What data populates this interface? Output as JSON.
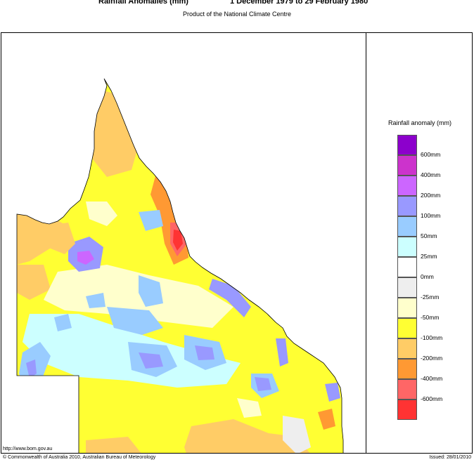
{
  "header": {
    "title": "Rainfall Anomalies (mm)",
    "period": "1 December 1979 to 29 February 1980",
    "subtitle": "Product of the National Climate Centre"
  },
  "legend": {
    "title": "Rainfall anomaly (mm)",
    "items": [
      {
        "color": "#8c00cc",
        "label": "600mm"
      },
      {
        "color": "#cc33cc",
        "label": "400mm"
      },
      {
        "color": "#cc66ff",
        "label": "200mm"
      },
      {
        "color": "#9999ff",
        "label": "100mm"
      },
      {
        "color": "#99ccff",
        "label": "50mm"
      },
      {
        "color": "#ccffff",
        "label": "25mm"
      },
      {
        "color": "#ffffff",
        "label": "0mm"
      },
      {
        "color": "#eeeeee",
        "label": "-25mm"
      },
      {
        "color": "#ffffcc",
        "label": "-50mm"
      },
      {
        "color": "#ffff33",
        "label": "-100mm"
      },
      {
        "color": "#ffcc66",
        "label": "-200mm"
      },
      {
        "color": "#ff9933",
        "label": "-400mm"
      },
      {
        "color": "#ff6666",
        "label": "-600mm"
      },
      {
        "color": "#ff3333",
        "label": ""
      }
    ]
  },
  "footer": {
    "url": "http://www.bom.gov.au",
    "copyright": "© Commonwealth of Australia 2010, Australian Bureau of Meteorology",
    "issued": "Issued: 28/01/2010"
  }
}
